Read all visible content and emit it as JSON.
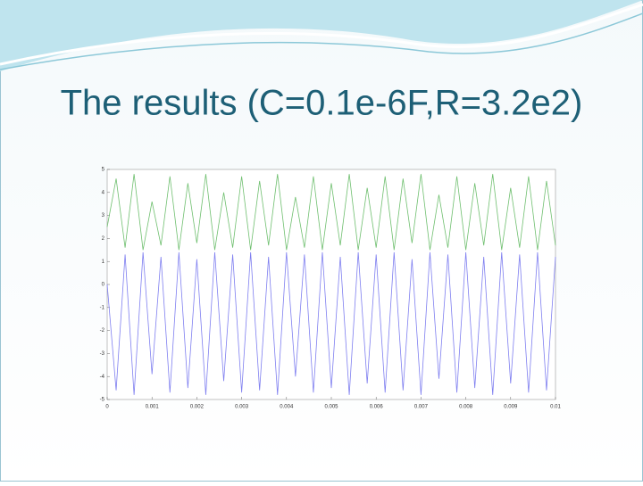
{
  "chart_data": {
    "type": "line",
    "title": "The results (C=0.1e-6F,R=3.2e2)",
    "x": [
      0,
      0.0002,
      0.0004,
      0.0006,
      0.0008,
      0.001,
      0.0012,
      0.0014,
      0.0016,
      0.0018,
      0.002,
      0.0022,
      0.0024,
      0.0026,
      0.0028,
      0.003,
      0.0032,
      0.0034,
      0.0036,
      0.0038,
      0.004,
      0.0042,
      0.0044,
      0.0046,
      0.0048,
      0.005,
      0.0052,
      0.0054,
      0.0056,
      0.0058,
      0.006,
      0.0062,
      0.0064,
      0.0066,
      0.0068,
      0.007,
      0.0072,
      0.0074,
      0.0076,
      0.0078,
      0.008,
      0.0082,
      0.0084,
      0.0086,
      0.0088,
      0.009,
      0.0092,
      0.0094,
      0.0096,
      0.0098,
      0.01
    ],
    "series": [
      {
        "color": "#7f7ff0",
        "values": [
          0,
          -4.6,
          1.3,
          -4.8,
          1.4,
          -3.9,
          1.2,
          -4.7,
          1.4,
          -4.5,
          1.1,
          -4.8,
          1.4,
          -4.2,
          1.3,
          -4.7,
          1.4,
          -4.6,
          1.2,
          -4.8,
          1.4,
          -4.0,
          1.3,
          -4.7,
          1.4,
          -4.5,
          1.2,
          -4.8,
          1.4,
          -4.3,
          1.3,
          -4.7,
          1.4,
          -4.6,
          1.1,
          -4.8,
          1.4,
          -4.1,
          1.3,
          -4.7,
          1.4,
          -4.5,
          1.2,
          -4.8,
          1.4,
          -4.3,
          1.3,
          -4.7,
          1.4,
          -4.6,
          1.2
        ]
      },
      {
        "color": "#6fbf6f",
        "values": [
          2.5,
          4.6,
          1.6,
          4.8,
          1.5,
          3.6,
          1.7,
          4.7,
          1.5,
          4.4,
          1.8,
          4.8,
          1.5,
          4.0,
          1.6,
          4.7,
          1.5,
          4.5,
          1.7,
          4.8,
          1.5,
          3.8,
          1.6,
          4.7,
          1.5,
          4.4,
          1.7,
          4.8,
          1.5,
          4.2,
          1.6,
          4.7,
          1.5,
          4.6,
          1.8,
          4.8,
          1.5,
          3.9,
          1.6,
          4.7,
          1.5,
          4.4,
          1.7,
          4.8,
          1.5,
          4.2,
          1.6,
          4.7,
          1.5,
          4.5,
          1.7
        ]
      }
    ],
    "xlim": [
      0,
      0.01
    ],
    "xticks": [
      0,
      0.001,
      0.002,
      0.003,
      0.004,
      0.005,
      0.006,
      0.007,
      0.008,
      0.009,
      0.01
    ],
    "ylim": [
      -5,
      5
    ],
    "yticks": [
      -5,
      -4,
      -3,
      -2,
      -1,
      0,
      1,
      2,
      3,
      4,
      5
    ]
  }
}
